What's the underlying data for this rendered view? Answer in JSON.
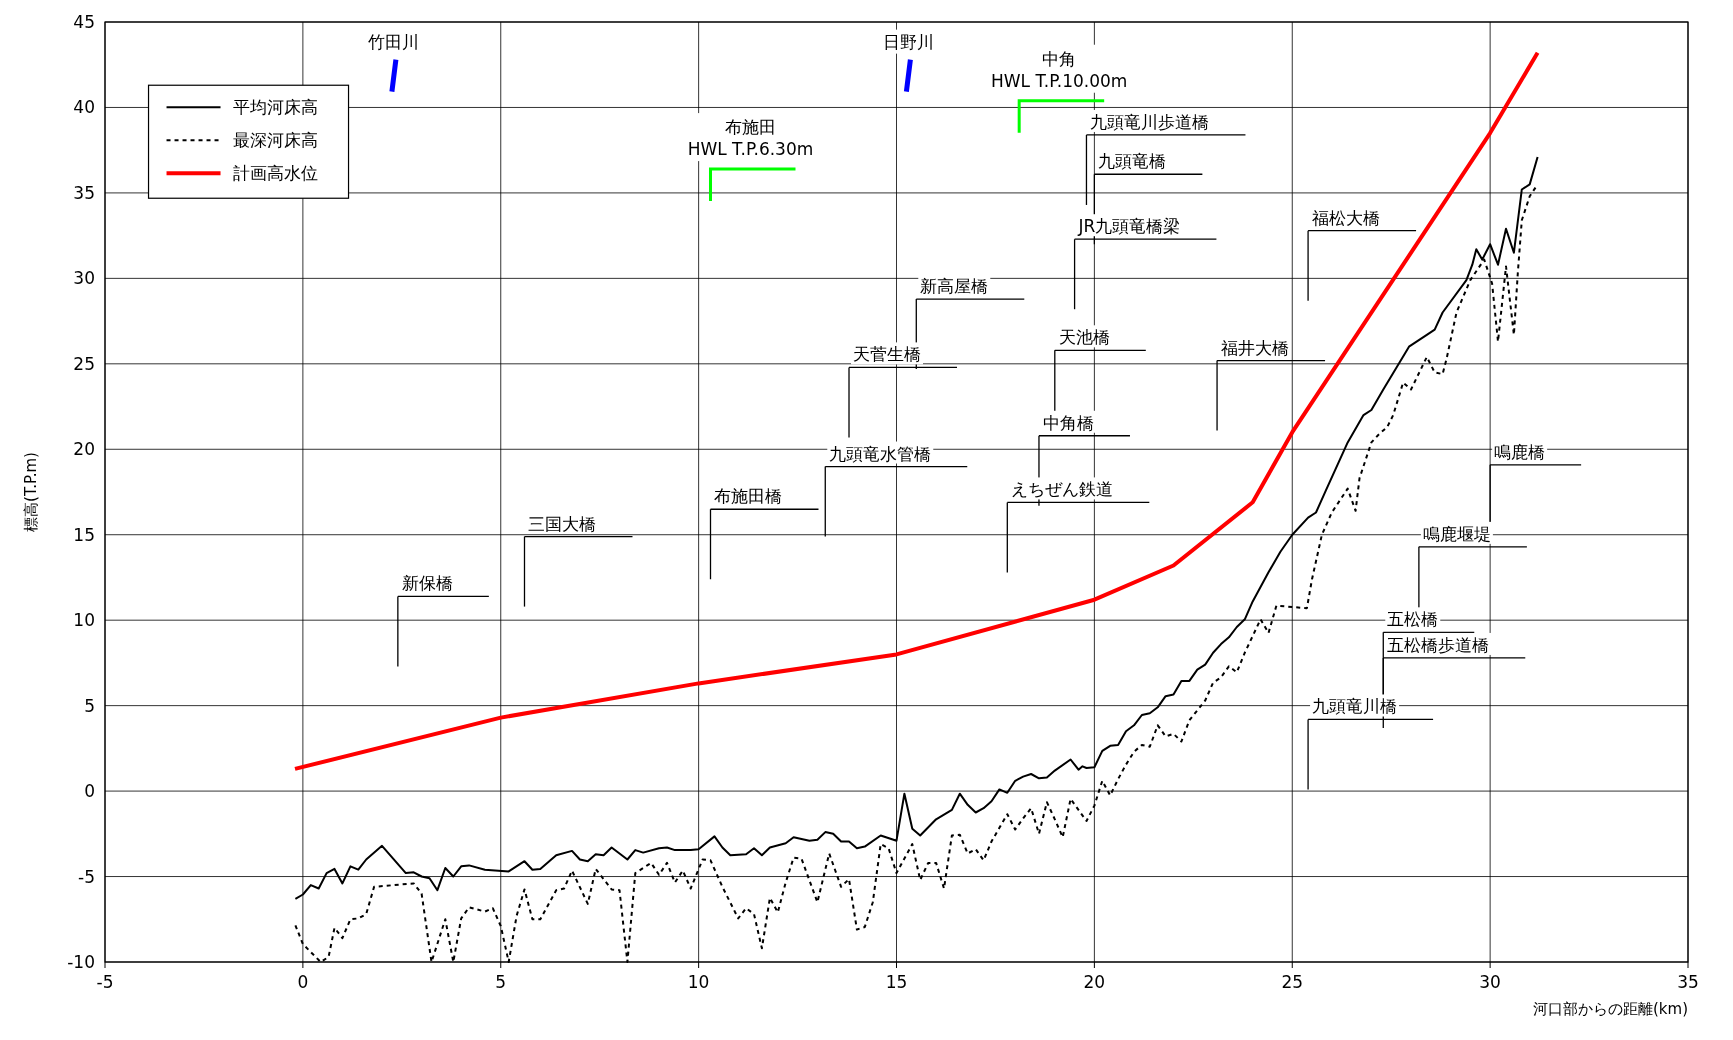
{
  "chart_data": {
    "type": "line",
    "xlabel": "河口部からの距離(km)",
    "ylabel": "標高(T.P.m)",
    "xlim": [
      -5,
      35
    ],
    "xticks": [
      -5,
      0,
      5,
      10,
      15,
      20,
      25,
      30,
      35
    ],
    "ylim": [
      -10,
      45
    ],
    "yticks": [
      -10,
      -5,
      0,
      5,
      10,
      15,
      20,
      25,
      30,
      35,
      40,
      45
    ],
    "grid": true,
    "legend": "top left",
    "series": [
      {
        "name": "平均河床高",
        "color": "#000000",
        "line_style": "solid",
        "x": [
          -0.19,
          0,
          0.2,
          0.4,
          0.6,
          0.8,
          1.0,
          1.2,
          1.4,
          1.6,
          2.0,
          2.6,
          2.8,
          3.0,
          3.2,
          3.4,
          3.6,
          3.8,
          4.0,
          4.2,
          4.6,
          5.2,
          5.6,
          5.8,
          6.0,
          6.4,
          6.8,
          7.0,
          7.2,
          7.4,
          7.6,
          7.8,
          8.2,
          8.4,
          8.6,
          9.0,
          9.2,
          9.4,
          9.8,
          10.0,
          10.4,
          10.6,
          10.8,
          11.2,
          11.4,
          11.6,
          11.8,
          12.2,
          12.4,
          12.8,
          13.0,
          13.2,
          13.4,
          13.6,
          13.8,
          14.0,
          14.2,
          14.6,
          15.0,
          15.2,
          15.4,
          15.6,
          16.0,
          16.4,
          16.6,
          16.8,
          17.0,
          17.2,
          17.4,
          17.6,
          17.8,
          18.0,
          18.2,
          18.4,
          18.6,
          18.8,
          19.0,
          19.4,
          19.6,
          19.7,
          19.8,
          20.0,
          20.2,
          20.4,
          20.6,
          20.8,
          21.0,
          21.2,
          21.4,
          21.6,
          21.8,
          22.0,
          22.2,
          22.4,
          22.6,
          22.8,
          23.0,
          23.2,
          23.4,
          23.6,
          23.8,
          24.0,
          24.4,
          24.7,
          25.0,
          25.4,
          25.6,
          25.85,
          26.4,
          26.8,
          27.0,
          27.3,
          27.95,
          28.4,
          28.6,
          28.8,
          29.4,
          29.55,
          29.65,
          29.8,
          30.0,
          30.2,
          30.4,
          30.6,
          30.8,
          31.0,
          31.2
        ],
        "values": [
          -6.3,
          -6.05,
          -5.5,
          -5.7,
          -4.8,
          -4.55,
          -5.4,
          -4.4,
          -4.6,
          -4.0,
          -3.2,
          -4.8,
          -4.75,
          -5.0,
          -5.1,
          -5.8,
          -4.5,
          -5.0,
          -4.4,
          -4.35,
          -4.6,
          -4.7,
          -4.1,
          -4.6,
          -4.55,
          -3.75,
          -3.5,
          -4.0,
          -4.1,
          -3.7,
          -3.75,
          -3.3,
          -4.0,
          -3.45,
          -3.6,
          -3.35,
          -3.3,
          -3.45,
          -3.45,
          -3.4,
          -2.65,
          -3.3,
          -3.75,
          -3.7,
          -3.35,
          -3.75,
          -3.3,
          -3.05,
          -2.7,
          -2.9,
          -2.85,
          -2.4,
          -2.5,
          -2.95,
          -2.95,
          -3.35,
          -3.25,
          -2.6,
          -2.9,
          -0.15,
          -2.2,
          -2.6,
          -1.65,
          -1.1,
          -0.15,
          -0.8,
          -1.25,
          -1.0,
          -0.6,
          0.1,
          -0.1,
          0.6,
          0.85,
          1.0,
          0.75,
          0.8,
          1.2,
          1.85,
          1.25,
          1.45,
          1.35,
          1.4,
          2.35,
          2.65,
          2.7,
          3.5,
          3.85,
          4.45,
          4.55,
          4.9,
          5.55,
          5.65,
          6.45,
          6.45,
          7.1,
          7.4,
          8.1,
          8.6,
          9.0,
          9.6,
          10.05,
          11.1,
          12.8,
          14.0,
          15.0,
          16.0,
          16.3,
          17.6,
          20.4,
          22.0,
          22.3,
          23.5,
          26.0,
          26.7,
          27.0,
          28.0,
          29.9,
          30.8,
          31.7,
          31.1,
          32.0,
          30.8,
          32.9,
          31.5,
          35.2,
          35.5,
          37.1
        ]
      },
      {
        "name": "最深河床高",
        "color": "#000000",
        "line_style": "dotted",
        "x": [
          -0.19,
          0,
          0.45,
          0.65,
          0.8,
          1.0,
          1.2,
          1.4,
          1.6,
          1.8,
          2.8,
          3.0,
          3.25,
          3.6,
          3.8,
          4.0,
          4.2,
          4.6,
          4.8,
          5.0,
          5.2,
          5.4,
          5.6,
          5.8,
          6.0,
          6.4,
          6.6,
          6.8,
          7.2,
          7.4,
          7.8,
          8.0,
          8.2,
          8.4,
          8.7,
          8.8,
          9.0,
          9.2,
          9.4,
          9.6,
          9.8,
          10.1,
          10.3,
          10.6,
          11.0,
          11.2,
          11.4,
          11.6,
          11.8,
          12.0,
          12.2,
          12.4,
          12.6,
          13.0,
          13.3,
          13.6,
          13.8,
          14.0,
          14.2,
          14.4,
          14.6,
          14.8,
          15.0,
          15.4,
          15.6,
          15.8,
          16.0,
          16.2,
          16.4,
          16.6,
          16.8,
          17.0,
          17.2,
          17.4,
          17.6,
          17.8,
          18.0,
          18.2,
          18.4,
          18.6,
          18.8,
          19.0,
          19.2,
          19.4,
          19.6,
          19.8,
          20.0,
          20.2,
          20.4,
          20.6,
          20.8,
          21.0,
          21.2,
          21.4,
          21.6,
          21.8,
          22.0,
          22.2,
          22.4,
          22.8,
          23.0,
          23.2,
          23.4,
          23.6,
          23.8,
          24.2,
          24.4,
          24.6,
          25.37,
          25.5,
          25.75,
          26.0,
          26.4,
          26.6,
          26.7,
          27.0,
          27.2,
          27.4,
          27.55,
          27.8,
          28.0,
          28.4,
          28.6,
          28.8,
          28.9,
          29.15,
          29.5,
          29.85,
          30.05,
          30.2,
          30.4,
          30.6,
          30.7,
          30.8,
          31.0,
          31.2
        ],
        "values": [
          -7.85,
          -8.95,
          -10,
          -9.7,
          -8.0,
          -8.6,
          -7.5,
          -7.45,
          -7.2,
          -5.6,
          -5.4,
          -6.0,
          -10,
          -7.5,
          -10,
          -7.45,
          -6.8,
          -7.05,
          -6.85,
          -7.9,
          -10,
          -7.3,
          -5.75,
          -7.5,
          -7.5,
          -5.8,
          -5.7,
          -4.65,
          -6.6,
          -4.55,
          -5.75,
          -5.8,
          -10,
          -4.8,
          -4.35,
          -4.2,
          -4.9,
          -4.2,
          -5.35,
          -4.65,
          -5.7,
          -4.0,
          -4.05,
          -5.6,
          -7.45,
          -6.85,
          -7.2,
          -9.2,
          -6.25,
          -7.1,
          -5.35,
          -3.9,
          -3.95,
          -6.5,
          -3.65,
          -5.6,
          -5.15,
          -8.1,
          -7.95,
          -6.5,
          -3.1,
          -3.35,
          -4.8,
          -3.1,
          -5.2,
          -4.2,
          -4.2,
          -5.7,
          -2.6,
          -2.55,
          -3.65,
          -3.4,
          -4.05,
          -2.95,
          -2.15,
          -1.35,
          -2.25,
          -1.6,
          -1.0,
          -2.5,
          -0.65,
          -1.65,
          -2.7,
          -0.45,
          -1.1,
          -1.75,
          -0.85,
          0.6,
          -0.25,
          0.7,
          1.55,
          2.3,
          2.7,
          2.6,
          3.85,
          3.2,
          3.35,
          2.9,
          4.15,
          5.3,
          6.35,
          6.65,
          7.3,
          6.95,
          8.1,
          10.05,
          9.25,
          10.85,
          10.7,
          12.4,
          15.0,
          16.3,
          17.7,
          16.4,
          18.3,
          20.4,
          20.9,
          21.3,
          22.0,
          23.9,
          23.5,
          25.4,
          24.5,
          24.4,
          25.3,
          28.0,
          29.9,
          31.1,
          29.7,
          26.3,
          30.7,
          26.7,
          30.3,
          33.4,
          34.8,
          35.5
        ]
      },
      {
        "name": "計画高水位",
        "color": "#ff0000",
        "line_style": "solid",
        "x": [
          -0.2,
          5,
          10,
          15,
          20,
          22,
          24,
          25,
          30,
          31.2
        ],
        "values": [
          1.3,
          4.3,
          6.3,
          8.0,
          11.2,
          13.2,
          16.9,
          21,
          38.5,
          43.2
        ]
      }
    ],
    "annotations": [
      "竹田川",
      "日野川",
      "布施田\nHWL T.P.6.30m",
      "中角\nHWL T.P.10.00m",
      "九頭竜川歩道橋",
      "九頭竜橋",
      "JR九頭竜橋梁",
      "福松大橋",
      "新高屋橋",
      "天池橋",
      "福井大橋",
      "天菅生橋",
      "中角橋",
      "九頭竜水管橋",
      "鳴鹿橋",
      "えちぜん鉄道",
      "布施田橋",
      "三国大橋",
      "鳴鹿堰堤",
      "新保橋",
      "五松橋",
      "五松橋歩道橋",
      "九頭竜川橋"
    ]
  }
}
